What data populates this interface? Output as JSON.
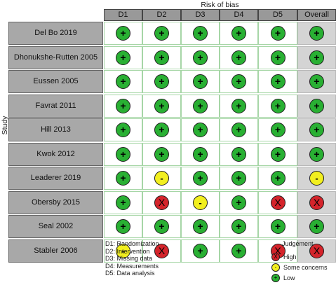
{
  "title": "Risk of bias",
  "y_axis_label": "Study",
  "domains": [
    "D1",
    "D2",
    "D3",
    "D4",
    "D5",
    "Overall"
  ],
  "studies": [
    {
      "name": "Del Bo 2019",
      "ratings": [
        "low",
        "low",
        "low",
        "low",
        "low",
        "low"
      ]
    },
    {
      "name": "Dhonukshe-Rutten 2005",
      "ratings": [
        "low",
        "low",
        "low",
        "low",
        "low",
        "low"
      ]
    },
    {
      "name": "Eussen 2005",
      "ratings": [
        "low",
        "low",
        "low",
        "low",
        "low",
        "low"
      ]
    },
    {
      "name": "Favrat 2011",
      "ratings": [
        "low",
        "low",
        "low",
        "low",
        "low",
        "low"
      ]
    },
    {
      "name": "Hill 2013",
      "ratings": [
        "low",
        "low",
        "low",
        "low",
        "low",
        "low"
      ]
    },
    {
      "name": "Kwok 2012",
      "ratings": [
        "low",
        "low",
        "low",
        "low",
        "low",
        "low"
      ]
    },
    {
      "name": "Leaderer 2019",
      "ratings": [
        "low",
        "some",
        "low",
        "low",
        "low",
        "some"
      ]
    },
    {
      "name": "Obersby 2015",
      "ratings": [
        "low",
        "high",
        "some",
        "low",
        "high",
        "high"
      ]
    },
    {
      "name": "Seal 2002",
      "ratings": [
        "low",
        "low",
        "low",
        "low",
        "low",
        "low"
      ]
    },
    {
      "name": "Stabler 2006",
      "ratings": [
        "some",
        "high",
        "low",
        "low",
        "high",
        "high"
      ]
    }
  ],
  "symbols": {
    "low": "+",
    "some": "-",
    "high": "X"
  },
  "colors": {
    "low": "#29b033",
    "some": "#f2ef1f",
    "high": "#d4242b"
  },
  "domain_legend": [
    "D1: Randomization",
    "D2: Intervention",
    "D3: Missing data",
    "D4: Measurements",
    "D5: Data analysis"
  ],
  "judgement": {
    "title": "Judgement",
    "items": [
      {
        "level": "high",
        "label": "High"
      },
      {
        "level": "some",
        "label": "Some concerns"
      },
      {
        "level": "low",
        "label": "Low"
      }
    ]
  }
}
